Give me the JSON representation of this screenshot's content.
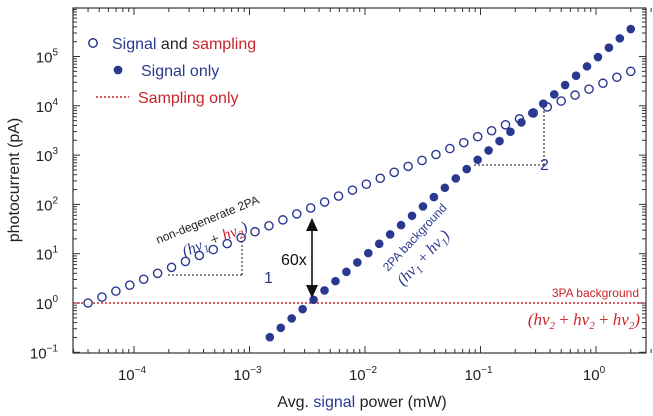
{
  "chart_data": {
    "type": "scatter",
    "xscale": "log",
    "yscale": "log",
    "xlim": [
      3e-05,
      3
    ],
    "ylim": [
      0.1,
      1000000
    ],
    "x_ticks": [
      {
        "base": "10",
        "exp": "−4",
        "value": 0.0001
      },
      {
        "base": "10",
        "exp": "−3",
        "value": 0.001
      },
      {
        "base": "10",
        "exp": "−2",
        "value": 0.01
      },
      {
        "base": "10",
        "exp": "−1",
        "value": 0.1
      },
      {
        "base": "10",
        "exp": "0",
        "value": 1
      }
    ],
    "y_ticks": [
      {
        "base": "10",
        "exp": "−1",
        "value": 0.1
      },
      {
        "base": "10",
        "exp": "0",
        "value": 1
      },
      {
        "base": "10",
        "exp": "1",
        "value": 10
      },
      {
        "base": "10",
        "exp": "2",
        "value": 100
      },
      {
        "base": "10",
        "exp": "3",
        "value": 1000
      },
      {
        "base": "10",
        "exp": "4",
        "value": 10000
      },
      {
        "base": "10",
        "exp": "5",
        "value": 100000
      }
    ],
    "xlabel": {
      "pre": "Avg. ",
      "highlight": "signal",
      "post": " power (mW)"
    },
    "ylabel": "photocurrent (pA)",
    "series": [
      {
        "name": "Signal and sampling",
        "marker": "open-circle",
        "color": "#2a3990",
        "x_range": [
          4e-05,
          2.0
        ],
        "slope": 1,
        "ref": {
          "x": 4e-05,
          "y": 1.0
        },
        "n_points": 40
      },
      {
        "name": "Signal only",
        "marker": "filled-circle",
        "color": "#2a3990",
        "x_range": [
          0.0015,
          2.0
        ],
        "slope": 2,
        "ref": {
          "x": 0.00333,
          "y": 1.0
        },
        "n_points": 34
      },
      {
        "name": "Sampling only",
        "marker": "dotted-line",
        "color": "#c8242b",
        "y_constant": 1.0
      }
    ],
    "legend": {
      "position": "top-left",
      "entries": [
        {
          "parts": [
            {
              "text": "Signal",
              "color": "#2a3990"
            },
            {
              "text": " and ",
              "color": "#222222"
            },
            {
              "text": "sampling",
              "color": "#c8242b"
            }
          ],
          "marker": "open-circle"
        },
        {
          "parts": [
            {
              "text": "Signal only",
              "color": "#2a3990"
            }
          ],
          "marker": "filled-circle"
        },
        {
          "parts": [
            {
              "text": "Sampling only",
              "color": "#c8242b"
            }
          ],
          "marker": "dotted-line"
        }
      ]
    },
    "annotations": {
      "nondegenerate": "non-degenerate 2PA",
      "twopa_bg": "2PA background",
      "threepa_bg": "3PA background",
      "ratio": "60x",
      "slope1": "1",
      "slope2": "2",
      "formula_nd": {
        "open": "(",
        "a": "hν",
        "a_sub": "1",
        "plus": " + ",
        "b": "hν",
        "b_sub": "2",
        "close": ")"
      },
      "formula_2pa": {
        "open": "(",
        "a": "hν",
        "a_sub": "1",
        "plus": " + ",
        "b": "hν",
        "b_sub": "1",
        "close": ")"
      },
      "formula_3pa": {
        "open": "(",
        "a": "hν",
        "a_sub": "2",
        "plus1": " + ",
        "b": "hν",
        "b_sub": "2",
        "plus2": " + ",
        "c": "hν",
        "c_sub": "2",
        "close": ")"
      }
    },
    "colors": {
      "blue": "#2a3990",
      "red": "#c8242b",
      "text": "#222222"
    }
  }
}
